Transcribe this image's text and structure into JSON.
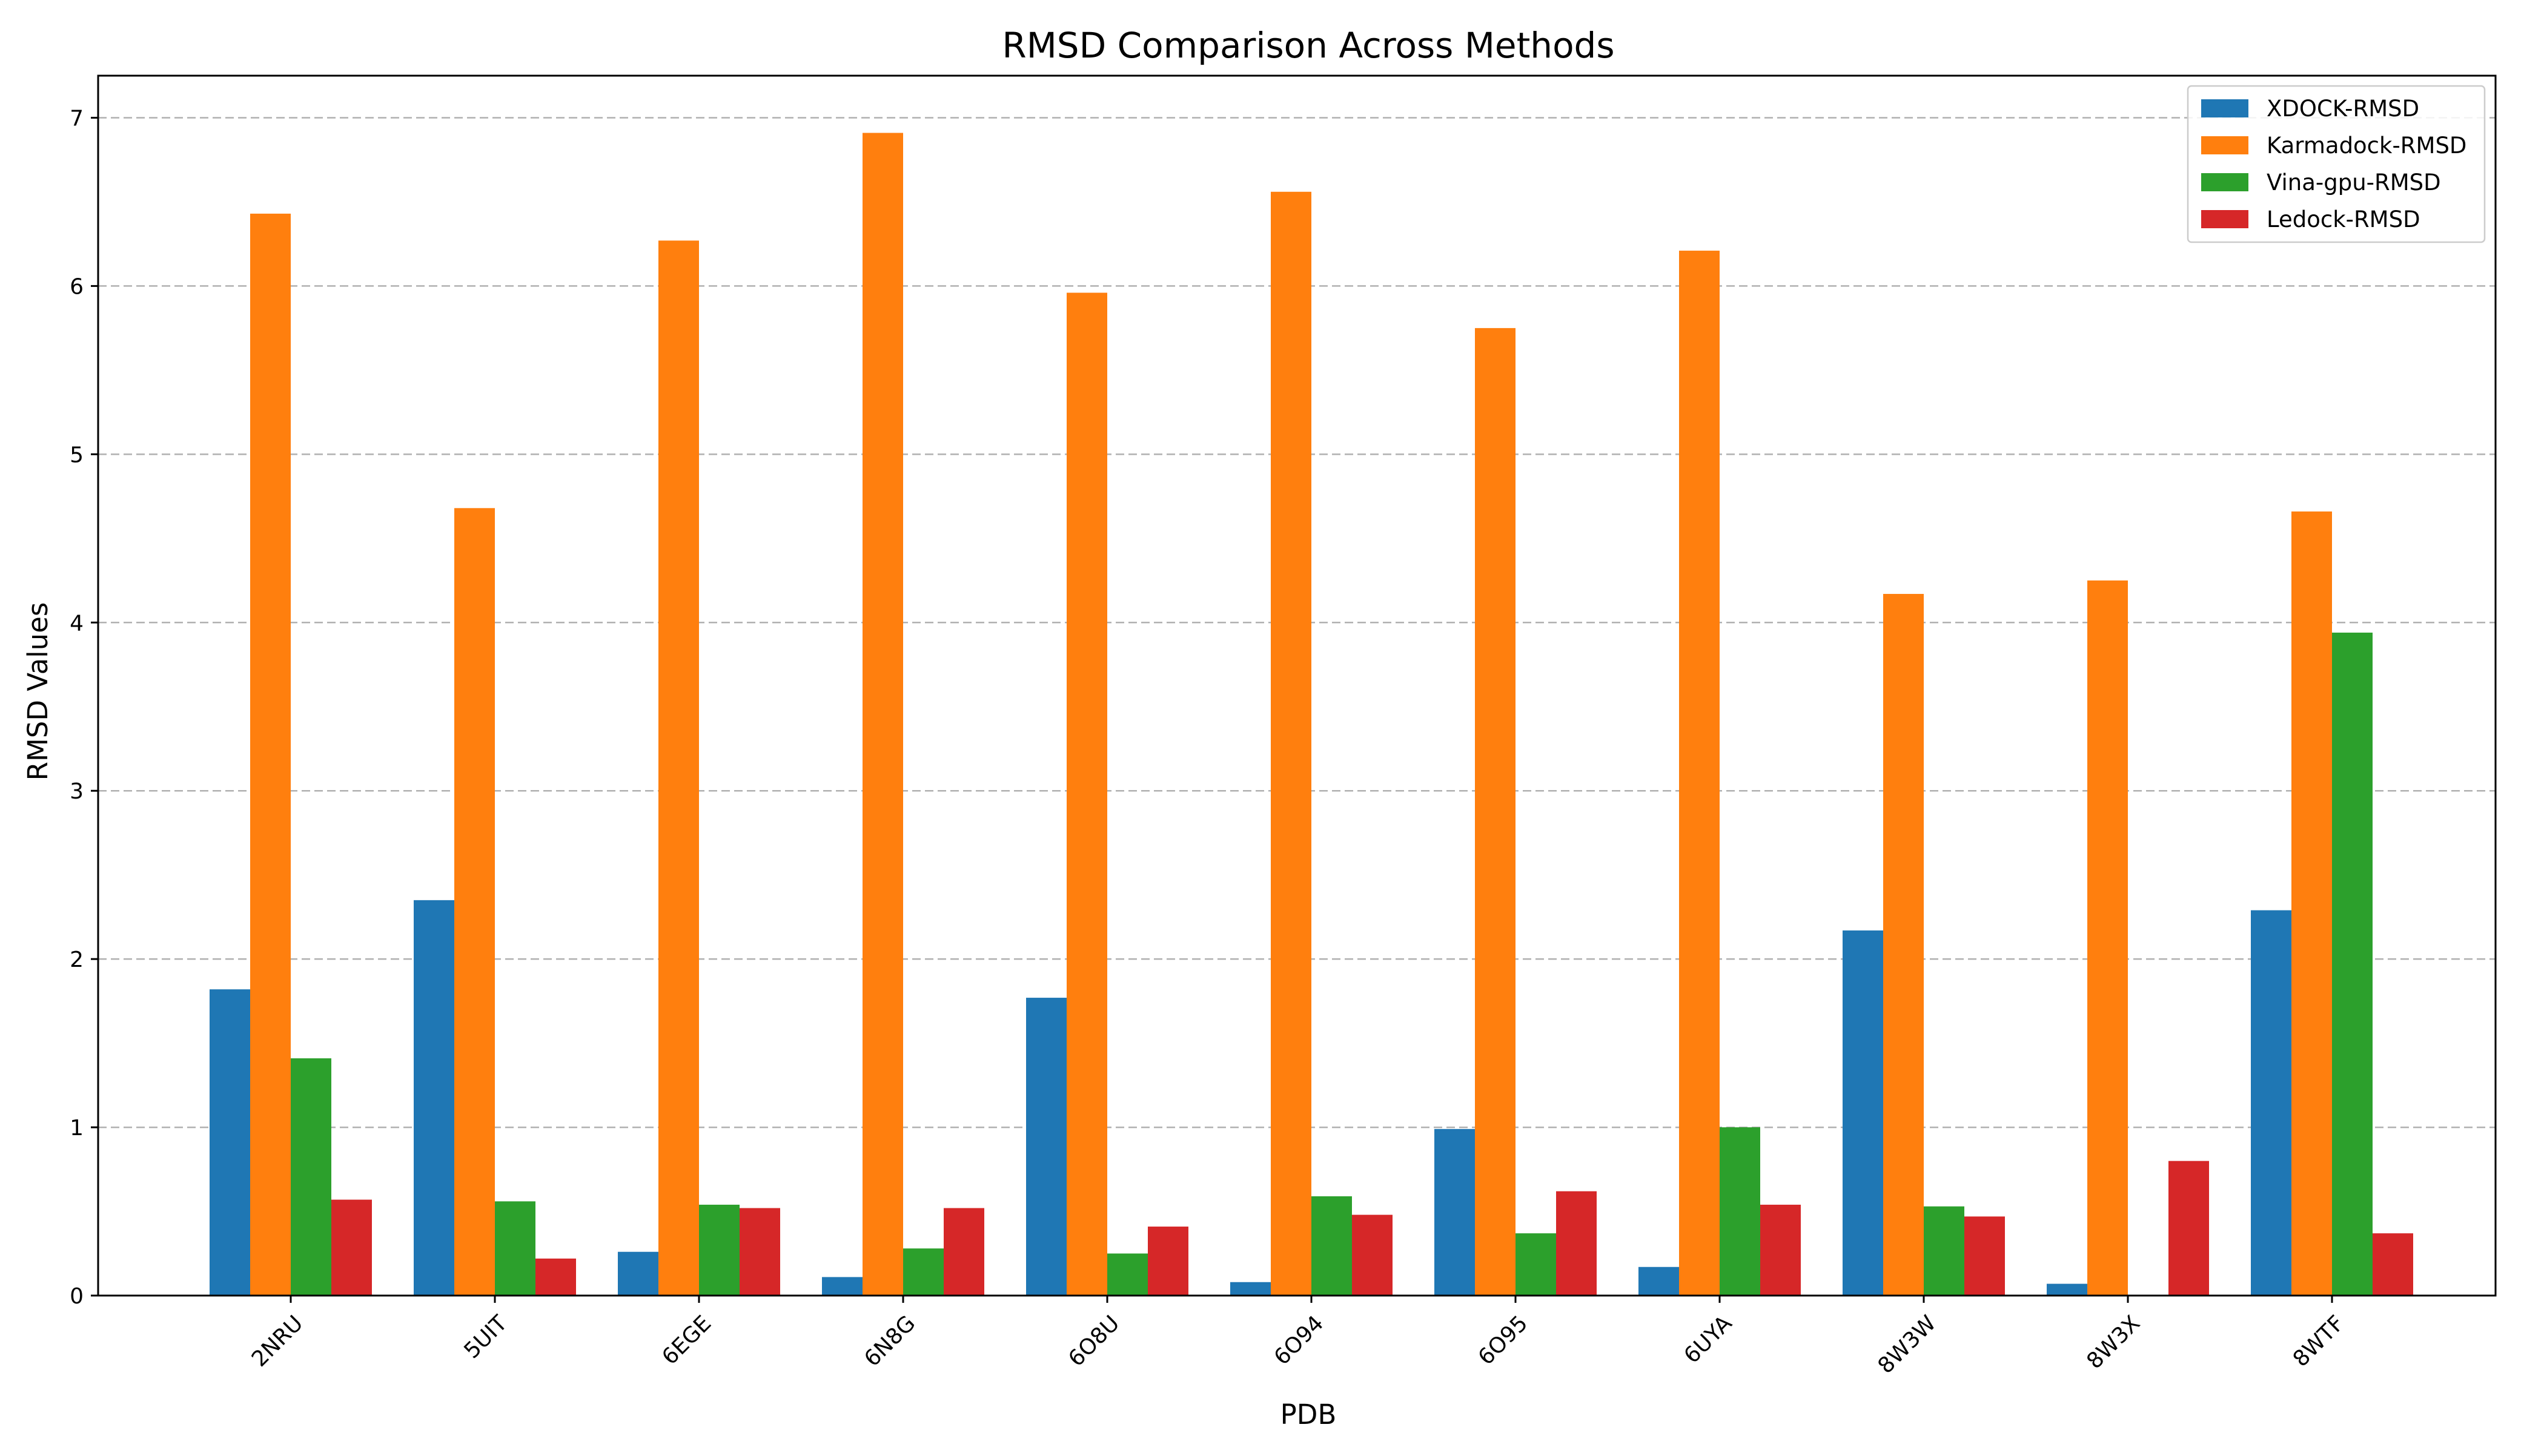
{
  "chart_data": {
    "type": "bar",
    "title": "RMSD Comparison Across Methods",
    "xlabel": "PDB",
    "ylabel": "RMSD Values",
    "ylim": [
      0,
      7.25
    ],
    "yticks": [
      0,
      1,
      2,
      3,
      4,
      5,
      6,
      7
    ],
    "grid": "y-dashed",
    "legend_position": "top-right",
    "categories": [
      "2NRU",
      "5UIT",
      "6EGE",
      "6N8G",
      "6O8U",
      "6O94",
      "6O95",
      "6UYA",
      "8W3W",
      "8W3X",
      "8WTF"
    ],
    "series": [
      {
        "name": "XDOCK-RMSD",
        "color": "#1f77b4",
        "values": [
          1.82,
          2.35,
          0.26,
          0.11,
          1.77,
          0.08,
          0.99,
          0.17,
          2.17,
          0.07,
          2.29
        ]
      },
      {
        "name": "Karmadock-RMSD",
        "color": "#ff7f0e",
        "values": [
          6.43,
          4.68,
          6.27,
          6.91,
          5.96,
          6.56,
          5.75,
          6.21,
          4.17,
          4.25,
          4.66
        ]
      },
      {
        "name": "Vina-gpu-RMSD",
        "color": "#2ca02c",
        "values": [
          1.41,
          0.56,
          0.54,
          0.28,
          0.25,
          0.59,
          0.37,
          1.0,
          0.53,
          0.0,
          3.94
        ]
      },
      {
        "name": "Ledock-RMSD",
        "color": "#d62728",
        "values": [
          0.57,
          0.22,
          0.52,
          0.52,
          0.41,
          0.48,
          0.62,
          0.54,
          0.47,
          0.8,
          0.37
        ]
      }
    ]
  }
}
